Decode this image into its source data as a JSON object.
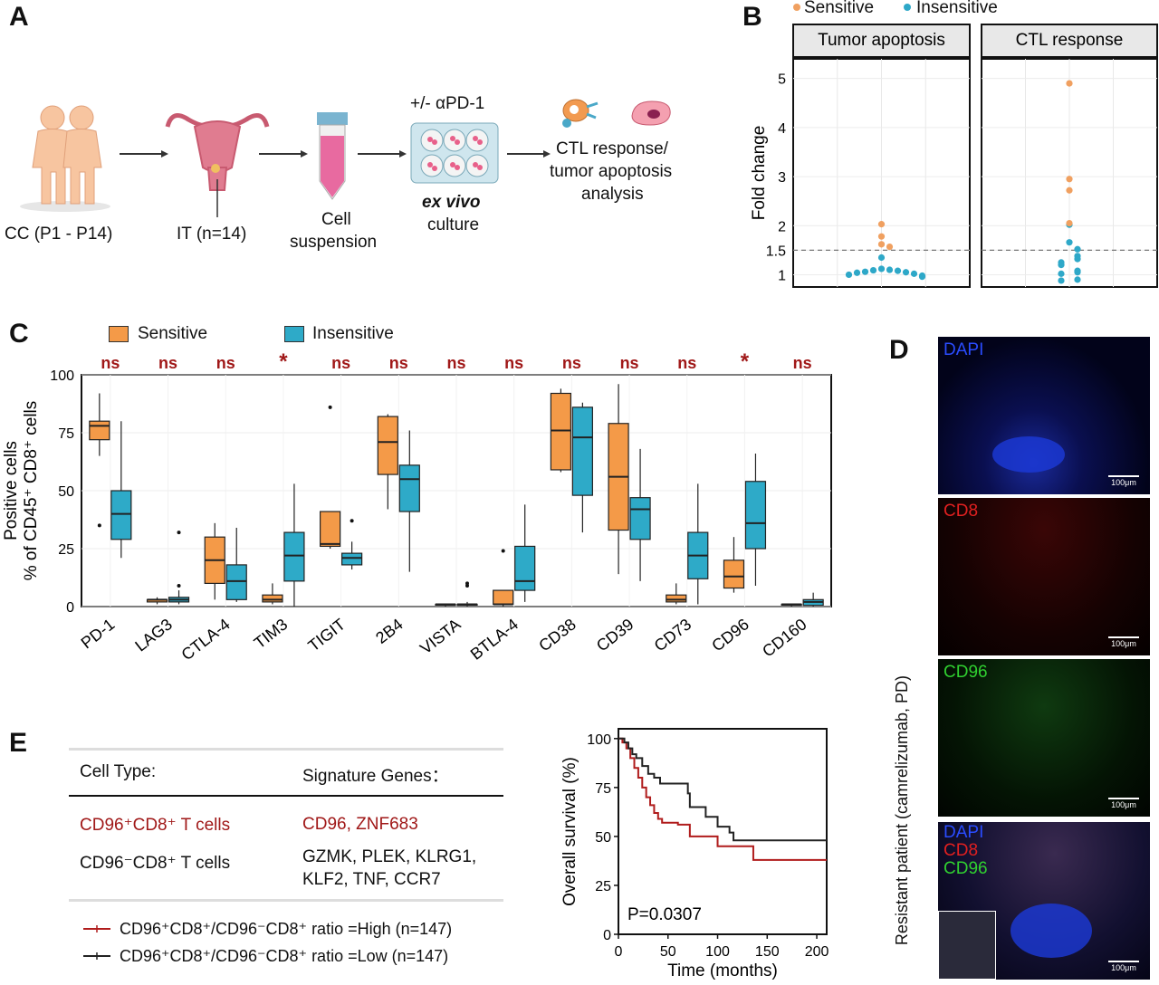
{
  "panels": {
    "a": "A",
    "b": "B",
    "c": "C",
    "d": "D",
    "e": "E"
  },
  "workflow": {
    "patients": "CC (P1 - P14)",
    "it": "IT (n=14)",
    "cell1": "Cell",
    "cell2": "suspension",
    "treat": "+/- αPD-1",
    "exvivo": "ex vivo",
    "culture": "culture",
    "res1": "CTL response/",
    "res2": "tumor apoptosis",
    "res3": "analysis"
  },
  "legend_b": {
    "sensitive": "Sensitive",
    "insensitive": "Insensitive"
  },
  "legend_c": {
    "sensitive": "Sensitive",
    "insensitive": "Insensitive"
  },
  "colors": {
    "sensitive": "#f0a060",
    "insensitive": "#2ea8c8",
    "box_sensitive": "#f49a48",
    "box_insensitive": "#2eaac8",
    "ns": "#a01818",
    "high": "#b01c1c",
    "low": "#222222"
  },
  "figure_e": {
    "col_type": "Cell Type:",
    "col_genes": "Signature Genes：",
    "row1_type": "CD96⁺CD8⁺ T cells",
    "row1_genes": "CD96, ZNF683",
    "row2_type": "CD96⁻CD8⁺ T cells",
    "row2_genes_1": "GZMK, PLEK, KLRG1,",
    "row2_genes_2": "KLF2, TNF, CCR7",
    "legend_high": "CD96⁺CD8⁺/CD96⁻CD8⁺ ratio =High (n=147)",
    "legend_low": "CD96⁺CD8⁺/CD96⁻CD8⁺ ratio =Low  (n=147)"
  },
  "micro": {
    "dapi": "DAPI",
    "cd8": "CD8",
    "cd96": "CD96",
    "scale": "100μm",
    "side_label": "Resistant patient (camrelizumab, PD)"
  },
  "chart_data": [
    {
      "id": "B",
      "type": "scatter",
      "ylabel": "Fold change",
      "yticks": [
        1,
        1.5,
        2,
        3,
        4,
        5
      ],
      "ylim": [
        0.75,
        5.4
      ],
      "threshold": 1.5,
      "facets": [
        {
          "title": "Tumor apoptosis",
          "sensitive": [
            2.03,
            1.78,
            1.62,
            1.57
          ],
          "insensitive": [
            1.35,
            1.12,
            1.1,
            1.09,
            1.08,
            1.06,
            1.05,
            1.04,
            1.02,
            1.0,
            0.98,
            0.96
          ]
        },
        {
          "title": "CTL response",
          "sensitive": [
            4.9,
            2.95,
            2.72,
            2.05
          ],
          "insensitive": [
            2.02,
            1.66,
            1.52,
            1.38,
            1.32,
            1.25,
            1.2,
            1.08,
            1.05,
            1.02,
            0.9,
            0.88
          ]
        }
      ]
    },
    {
      "id": "C",
      "type": "box",
      "ylabel_1": "Positive cells",
      "ylabel_2": "% of CD45⁺ CD8⁺ cells",
      "ylim": [
        0,
        100
      ],
      "yticks": [
        0,
        25,
        50,
        75,
        100
      ],
      "categories": [
        "PD-1",
        "LAG3",
        "CTLA-4",
        "TIM3",
        "TIGIT",
        "2B4",
        "VISTA",
        "BTLA-4",
        "CD38",
        "CD39",
        "CD73",
        "CD96",
        "CD160"
      ],
      "significance": [
        "ns",
        "ns",
        "ns",
        "*",
        "ns",
        "ns",
        "ns",
        "ns",
        "ns",
        "ns",
        "ns",
        "*",
        "ns"
      ],
      "series": [
        {
          "name": "Sensitive",
          "boxes": [
            [
              65,
              72,
              78,
              80,
              92
            ],
            [
              1,
              2,
              3,
              3,
              4
            ],
            [
              3,
              10,
              20,
              30,
              36
            ],
            [
              1,
              2,
              3,
              5,
              10
            ],
            [
              25,
              26,
              27,
              41,
              41
            ],
            [
              42,
              57,
              71,
              82,
              83
            ],
            [
              0,
              0.5,
              1,
              1,
              1
            ],
            [
              0,
              1,
              1,
              7,
              7
            ],
            [
              58,
              59,
              76,
              92,
              94
            ],
            [
              14,
              33,
              56,
              79,
              96
            ],
            [
              1,
              2,
              3,
              5,
              10
            ],
            [
              6,
              8,
              13,
              20,
              30
            ],
            [
              0,
              0.5,
              1,
              1,
              1
            ]
          ],
          "outliers": [
            [
              35
            ],
            [],
            [],
            [],
            [
              86
            ],
            [],
            [],
            [
              24
            ],
            [],
            [],
            [],
            [],
            []
          ]
        },
        {
          "name": "Insensitive",
          "boxes": [
            [
              21,
              29,
              40,
              50,
              80
            ],
            [
              1,
              2,
              3,
              4,
              7
            ],
            [
              2,
              3,
              11,
              18,
              34
            ],
            [
              0,
              11,
              22,
              32,
              53
            ],
            [
              16,
              18,
              21,
              23,
              28
            ],
            [
              15,
              41,
              55,
              61,
              76
            ],
            [
              0,
              0.5,
              1,
              1,
              2
            ],
            [
              2,
              7,
              11,
              26,
              44
            ],
            [
              32,
              48,
              73,
              86,
              88
            ],
            [
              11,
              29,
              42,
              47,
              68
            ],
            [
              1,
              12,
              22,
              32,
              53
            ],
            [
              9,
              25,
              36,
              54,
              66
            ],
            [
              0,
              0.5,
              2,
              3,
              6
            ]
          ],
          "outliers": [
            [],
            [
              32,
              9
            ],
            [],
            [],
            [
              37
            ],
            [],
            [
              9,
              10
            ],
            [],
            [],
            [],
            [],
            [],
            []
          ]
        }
      ]
    },
    {
      "id": "E-km",
      "type": "line",
      "xlabel": "Time (months)",
      "ylabel": "Overall survival (%)",
      "xlim": [
        0,
        210
      ],
      "ylim": [
        0,
        105
      ],
      "xticks": [
        0,
        50,
        100,
        150,
        200
      ],
      "yticks": [
        0,
        25,
        50,
        75,
        100
      ],
      "annotation": "P=0.0307",
      "series": [
        {
          "name": "High",
          "points": [
            [
              0,
              100
            ],
            [
              4,
              98
            ],
            [
              8,
              95
            ],
            [
              12,
              90
            ],
            [
              16,
              85
            ],
            [
              20,
              80
            ],
            [
              24,
              75
            ],
            [
              28,
              70
            ],
            [
              32,
              66
            ],
            [
              36,
              62
            ],
            [
              40,
              59
            ],
            [
              44,
              57
            ],
            [
              52,
              57
            ],
            [
              60,
              56
            ],
            [
              68,
              56
            ],
            [
              72,
              50
            ],
            [
              90,
              50
            ],
            [
              100,
              45
            ],
            [
              135,
              45
            ],
            [
              136,
              38
            ],
            [
              210,
              38
            ]
          ]
        },
        {
          "name": "Low",
          "points": [
            [
              0,
              100
            ],
            [
              6,
              98
            ],
            [
              10,
              95
            ],
            [
              14,
              92
            ],
            [
              18,
              90
            ],
            [
              24,
              86
            ],
            [
              30,
              82
            ],
            [
              36,
              80
            ],
            [
              42,
              77
            ],
            [
              66,
              77
            ],
            [
              70,
              72
            ],
            [
              72,
              65
            ],
            [
              84,
              65
            ],
            [
              88,
              60
            ],
            [
              96,
              60
            ],
            [
              100,
              55
            ],
            [
              112,
              52
            ],
            [
              116,
              48
            ],
            [
              210,
              48
            ]
          ]
        }
      ]
    }
  ]
}
